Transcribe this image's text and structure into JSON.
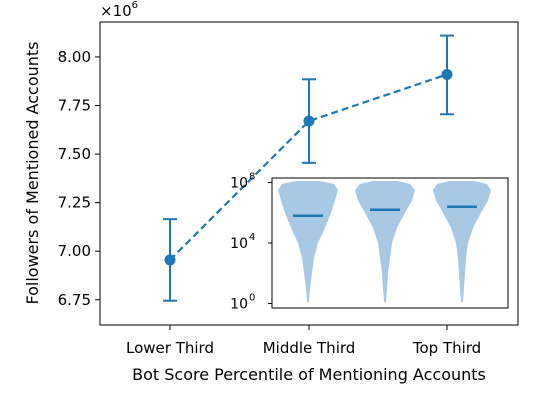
{
  "chart_data": {
    "type": "line",
    "xlabel": "Bot Score Percentile of Mentioning Accounts",
    "ylabel": "Followers of Mentioned Accounts",
    "y_multiplier": {
      "base": "×10",
      "exponent": "6"
    },
    "categories": [
      "Lower Third",
      "Middle Third",
      "Top Third"
    ],
    "series": [
      {
        "values": [
          6.955,
          7.67,
          7.91
        ],
        "err_low": [
          6.745,
          7.455,
          7.705
        ],
        "err_high": [
          7.165,
          7.885,
          8.11
        ]
      }
    ],
    "ylim": [
      6.62,
      8.18
    ],
    "yticks": [
      "6.75",
      "7.00",
      "7.25",
      "7.50",
      "7.75",
      "8.00"
    ],
    "grid": false,
    "line_color": "#1f77b4",
    "inset": {
      "type": "violin",
      "y_scale": "log",
      "yticks": [
        {
          "base": "10",
          "exp": "0"
        },
        {
          "base": "10",
          "exp": "4"
        },
        {
          "base": "10",
          "exp": "8"
        }
      ],
      "ylim_log10": [
        -0.3,
        8.3
      ],
      "medians_log10": [
        5.8,
        6.2,
        6.4
      ],
      "fill_color": "#a9c8e3",
      "median_color": "#1f77b4"
    }
  }
}
